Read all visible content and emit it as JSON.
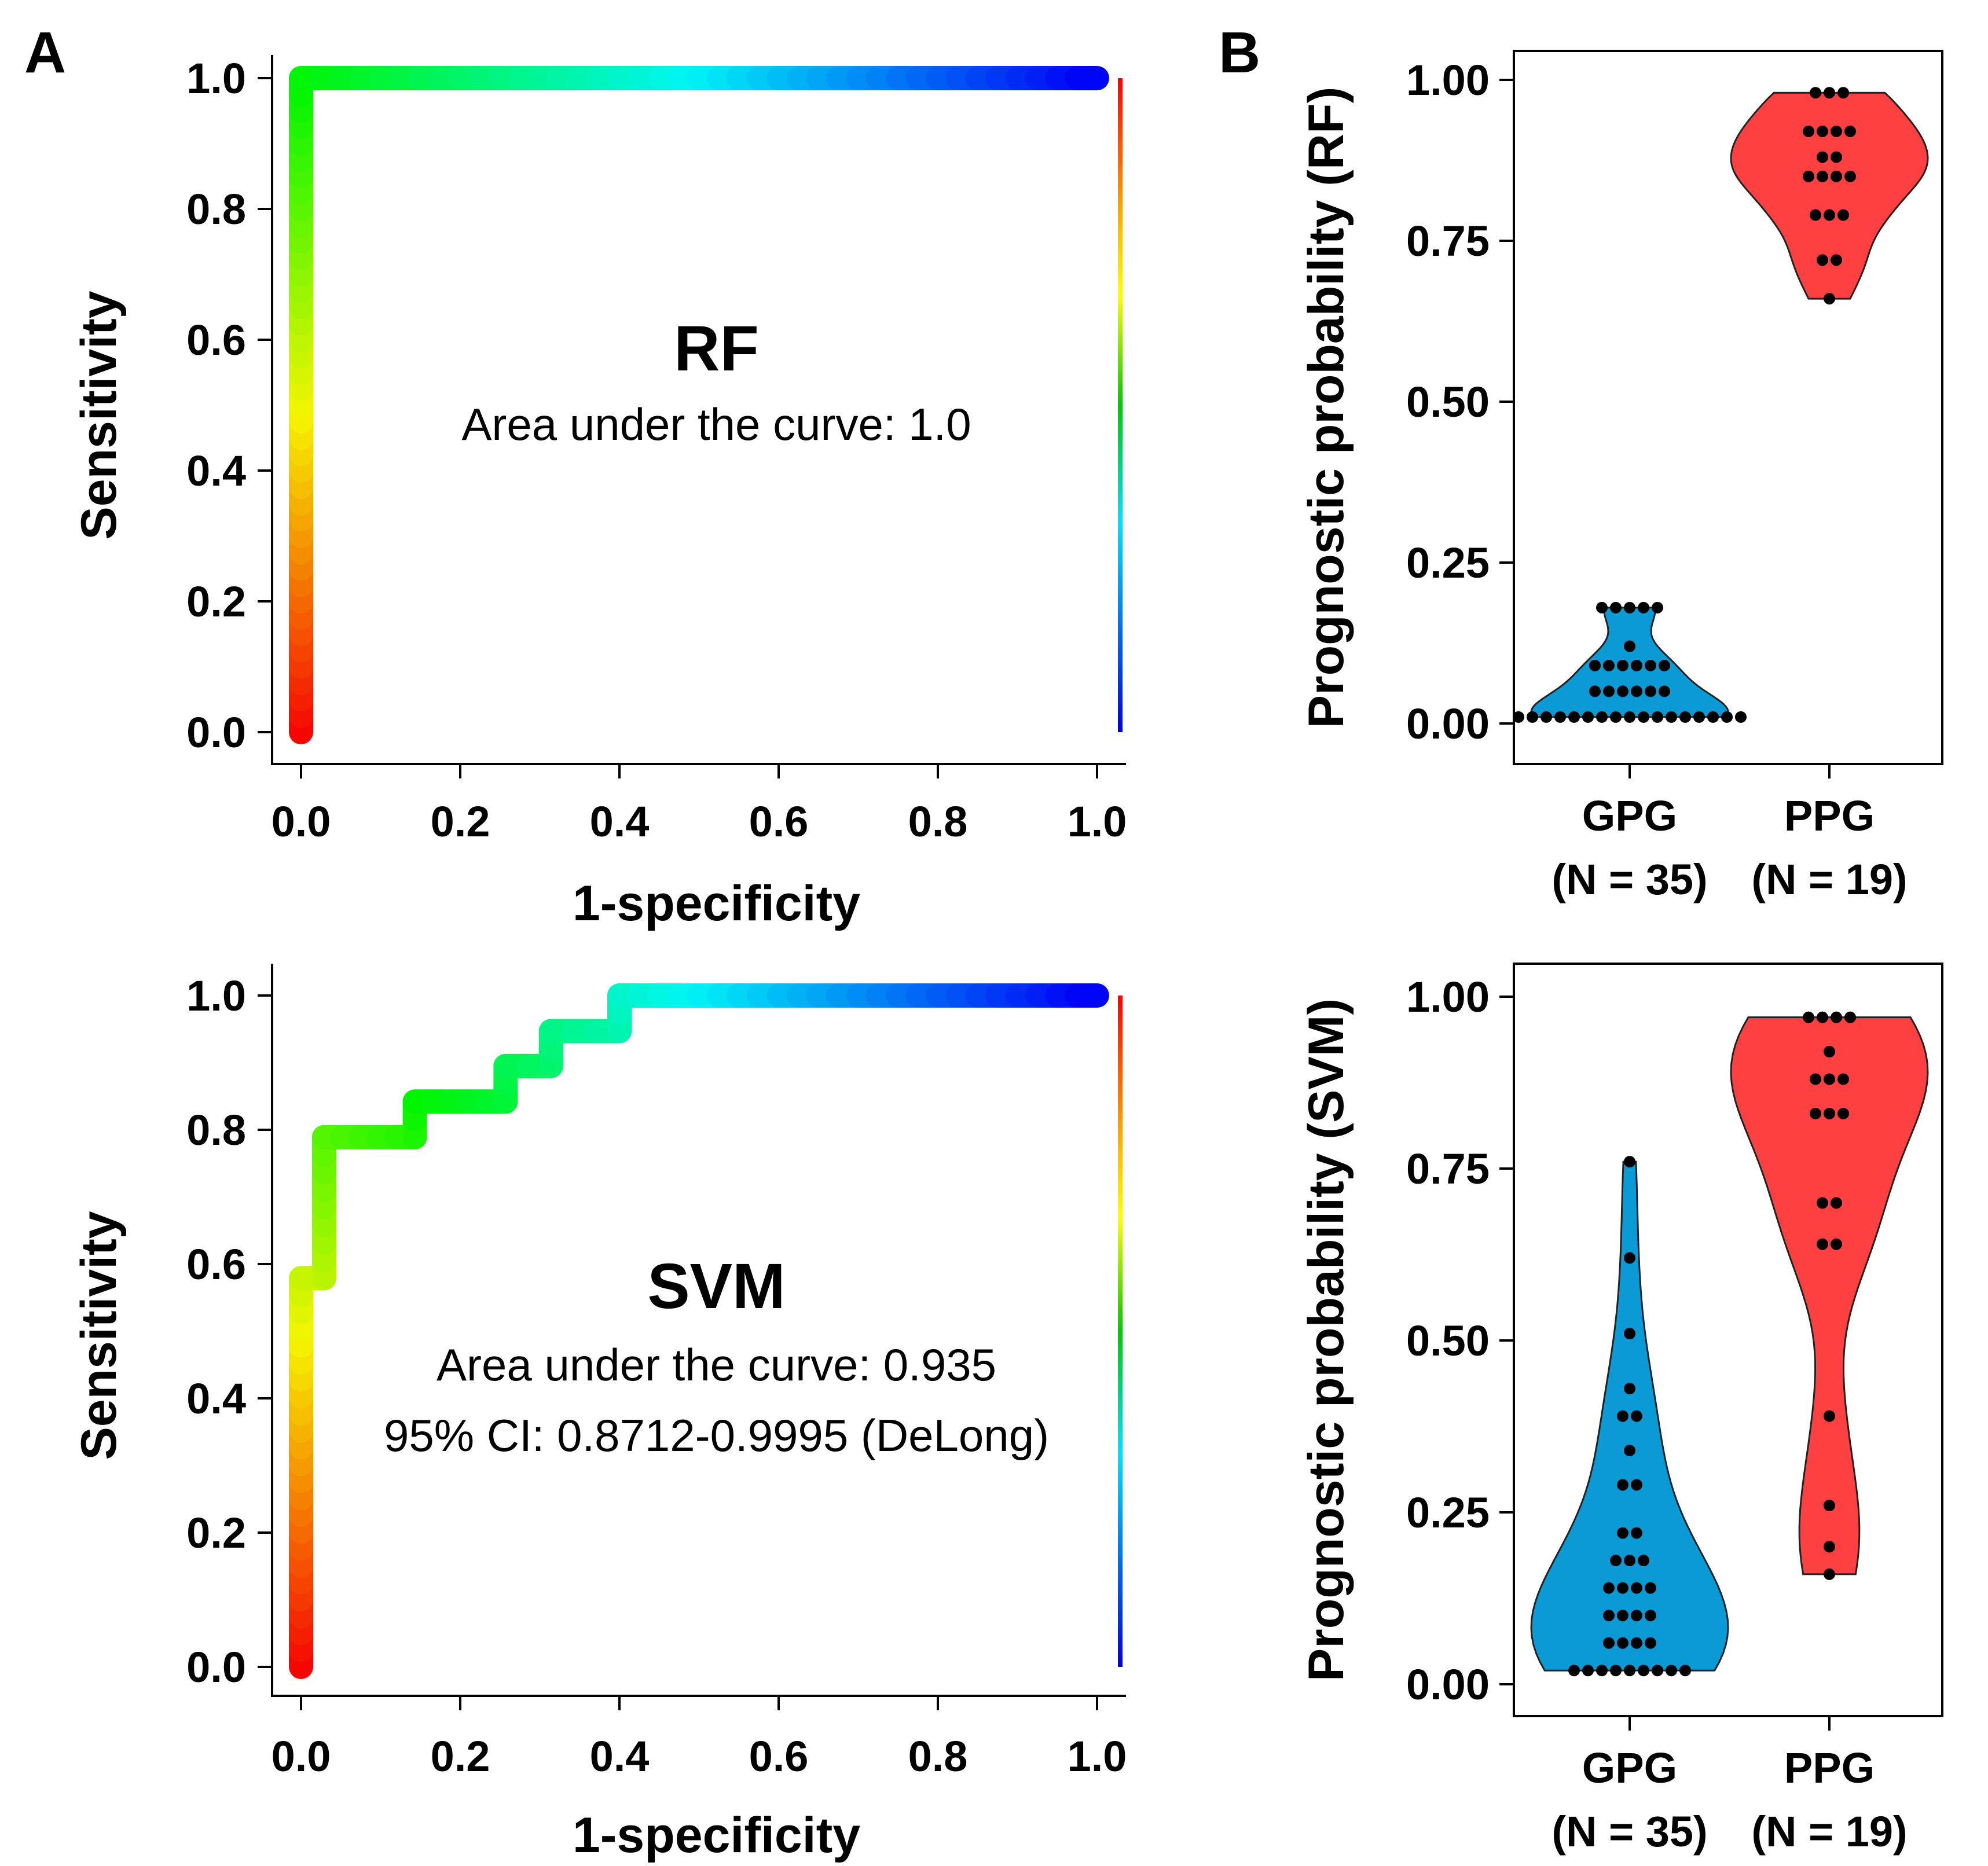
{
  "panels": {
    "a": "A",
    "b": "B"
  },
  "chart_data": [
    {
      "id": "roc-rf",
      "type": "line",
      "title": "RF",
      "annotations": [
        "Area under the curve: 1.0"
      ],
      "xlabel": "1-specificity",
      "ylabel": "Sensitivity",
      "xlim": [
        0,
        1.0
      ],
      "ylim": [
        0,
        1.0
      ],
      "xticks": [
        "0.0",
        "0.2",
        "0.4",
        "0.6",
        "0.8",
        "1.0"
      ],
      "yticks": [
        "0.0",
        "0.2",
        "0.4",
        "0.6",
        "0.8",
        "1.0"
      ],
      "grid": false,
      "colorbar": "rainbow (red at top to blue at bottom)",
      "series": [
        {
          "name": "ROC",
          "x": [
            0,
            0,
            1.0
          ],
          "y": [
            0,
            1.0,
            1.0
          ]
        }
      ]
    },
    {
      "id": "roc-svm",
      "type": "line",
      "title": "SVM",
      "annotations": [
        "Area under the curve: 0.935",
        "95% CI: 0.8712-0.9995 (DeLong)"
      ],
      "xlabel": "1-specificity",
      "ylabel": "Sensitivity",
      "xlim": [
        0,
        1.0
      ],
      "ylim": [
        0,
        1.0
      ],
      "xticks": [
        "0.0",
        "0.2",
        "0.4",
        "0.6",
        "0.8",
        "1.0"
      ],
      "yticks": [
        "0.0",
        "0.2",
        "0.4",
        "0.6",
        "0.8",
        "1.0"
      ],
      "grid": false,
      "colorbar": "rainbow (red at top to blue at bottom)",
      "series": [
        {
          "name": "ROC",
          "x": [
            0,
            0,
            0.029,
            0.029,
            0.143,
            0.143,
            0.257,
            0.257,
            0.314,
            0.314,
            0.4,
            0.4,
            1.0
          ],
          "y": [
            0,
            0.579,
            0.579,
            0.789,
            0.789,
            0.842,
            0.842,
            0.895,
            0.895,
            0.947,
            0.947,
            1.0,
            1.0
          ]
        }
      ]
    },
    {
      "id": "violin-rf",
      "type": "scatter",
      "subtype": "violin with dot plot",
      "xlabel": "",
      "ylabel": "Prognostic probability (RF)",
      "ylim": [
        0,
        1.0
      ],
      "yticks": [
        "0.00",
        "0.25",
        "0.50",
        "0.75",
        "1.00"
      ],
      "categories": [
        {
          "name": "GPG",
          "n_label": "(N = 35)",
          "color": "#0a9bd6",
          "values": [
            0.01,
            0.01,
            0.01,
            0.01,
            0.01,
            0.01,
            0.01,
            0.01,
            0.01,
            0.01,
            0.01,
            0.01,
            0.01,
            0.01,
            0.01,
            0.01,
            0.01,
            0.05,
            0.05,
            0.05,
            0.05,
            0.05,
            0.05,
            0.09,
            0.09,
            0.09,
            0.09,
            0.09,
            0.09,
            0.12,
            0.18,
            0.18,
            0.18,
            0.18,
            0.18
          ]
        },
        {
          "name": "PPG",
          "n_label": "(N = 19)",
          "color": "#ff4040",
          "values": [
            0.66,
            0.72,
            0.72,
            0.79,
            0.79,
            0.79,
            0.85,
            0.85,
            0.85,
            0.85,
            0.88,
            0.88,
            0.92,
            0.92,
            0.92,
            0.92,
            0.98,
            0.98,
            0.98
          ]
        }
      ]
    },
    {
      "id": "violin-svm",
      "type": "scatter",
      "subtype": "violin with dot plot",
      "xlabel": "",
      "ylabel": "Prognostic probability (SVM)",
      "ylim": [
        0,
        1.0
      ],
      "yticks": [
        "0.00",
        "0.25",
        "0.50",
        "0.75",
        "1.00"
      ],
      "categories": [
        {
          "name": "GPG",
          "n_label": "(N = 35)",
          "color": "#0a9bd6",
          "values": [
            0.02,
            0.02,
            0.02,
            0.02,
            0.02,
            0.02,
            0.02,
            0.02,
            0.06,
            0.06,
            0.06,
            0.1,
            0.1,
            0.1,
            0.14,
            0.14,
            0.14,
            0.14,
            0.18,
            0.18,
            0.18,
            0.22,
            0.22,
            0.29,
            0.29,
            0.34,
            0.39,
            0.39,
            0.43,
            0.51,
            0.62,
            0.76,
            0.02,
            0.06,
            0.1
          ]
        },
        {
          "name": "PPG",
          "n_label": "(N = 19)",
          "color": "#ff4040",
          "values": [
            0.16,
            0.2,
            0.26,
            0.39,
            0.64,
            0.64,
            0.7,
            0.7,
            0.83,
            0.83,
            0.83,
            0.88,
            0.88,
            0.88,
            0.92,
            0.97,
            0.97,
            0.97,
            0.97
          ]
        }
      ]
    }
  ]
}
